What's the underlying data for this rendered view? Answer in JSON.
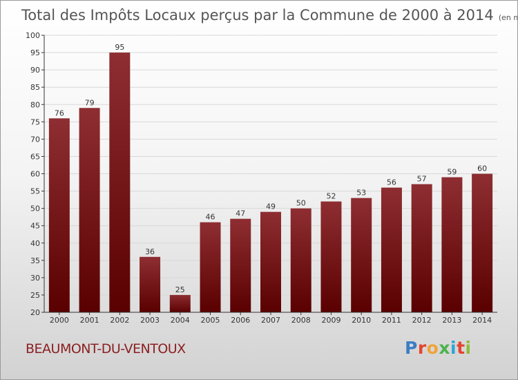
{
  "header": {
    "title": "Total des Impôts Locaux perçus par la Commune de 2000 à 2014",
    "unit": "(en milliers d'€)"
  },
  "commune": "BEAUMONT-DU-VENTOUX",
  "logo": {
    "text": "Proxiti",
    "colors": [
      "#3b7dc4",
      "#e3442f",
      "#f0a43a",
      "#4ab34a",
      "#2aa6d6",
      "#e3442f",
      "#8bbd3a"
    ]
  },
  "colors": {
    "bar_top": "#8e2e32",
    "bar_bottom": "#5a0000",
    "axis": "#333333",
    "grid": "#d8d8d8",
    "title": "#555555",
    "commune": "#8b1f22"
  },
  "chart_data": {
    "type": "bar",
    "title": "Total des Impôts Locaux perçus par la Commune de 2000 à 2014",
    "xlabel": "",
    "ylabel": "",
    "categories": [
      "2000",
      "2001",
      "2002",
      "2003",
      "2004",
      "2005",
      "2006",
      "2007",
      "2008",
      "2009",
      "2010",
      "2011",
      "2012",
      "2013",
      "2014"
    ],
    "values": [
      76,
      79,
      95,
      36,
      25,
      46,
      47,
      49,
      50,
      52,
      53,
      56,
      57,
      59,
      60
    ],
    "ylim": [
      20,
      100
    ],
    "yticks": [
      20,
      25,
      30,
      35,
      40,
      45,
      50,
      55,
      60,
      65,
      70,
      75,
      80,
      85,
      90,
      95,
      100
    ],
    "grid": true,
    "legend": "none"
  }
}
